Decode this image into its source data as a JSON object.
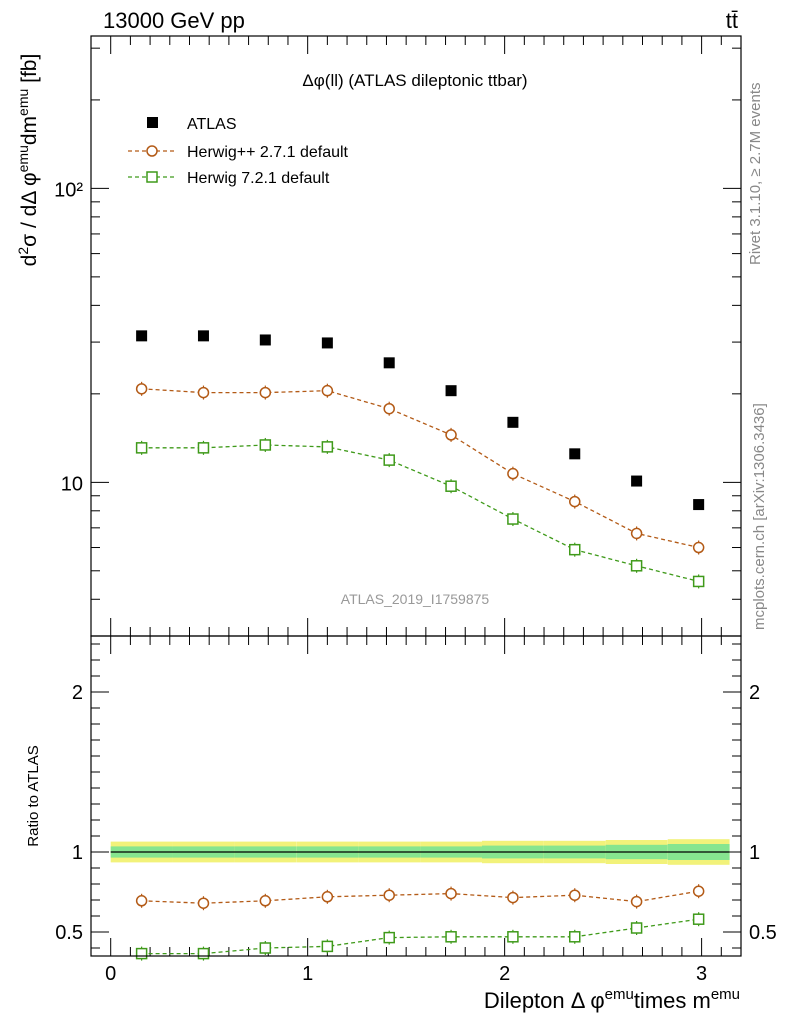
{
  "header": {
    "left": "13000 GeV pp",
    "right": "tt̄"
  },
  "side_labels": {
    "rivet": "Rivet 3.1.10, ≥ 2.7M events",
    "mcplots": "mcplots.cern.ch [arXiv:1306.3436]"
  },
  "chart_data": [
    {
      "type": "scatter",
      "title": "Δφ(ll) (ATLAS dileptonic ttbar)",
      "watermark": "ATLAS_2019_I1759875",
      "ylabel": "d²σ / dΔ φemu dmemu [fb]",
      "yscale": "log",
      "ylim": [
        3,
        330
      ],
      "xlim": [
        -0.1,
        3.2
      ],
      "y_ticks": [
        {
          "value": 10,
          "label": "10"
        },
        {
          "value": 100,
          "label": "10²"
        }
      ],
      "x": [
        0.157,
        0.471,
        0.785,
        1.1,
        1.414,
        1.728,
        2.042,
        2.356,
        2.67,
        2.985
      ],
      "series": [
        {
          "name": "ATLAS",
          "color": "#000000",
          "marker": "filled-square",
          "values": [
            31.5,
            31.5,
            30.5,
            29.8,
            25.5,
            20.5,
            16.0,
            12.5,
            10.1,
            8.4
          ]
        },
        {
          "name": "Herwig++ 2.7.1 default",
          "color": "#b35a16",
          "marker": "open-circle",
          "line": "dashed",
          "values": [
            20.8,
            20.2,
            20.2,
            20.5,
            17.8,
            14.5,
            10.7,
            8.6,
            6.7,
            6.0
          ]
        },
        {
          "name": "Herwig 7.2.1 default",
          "color": "#3f9a1a",
          "marker": "open-square",
          "line": "dashed",
          "values": [
            13.1,
            13.1,
            13.4,
            13.2,
            11.9,
            9.7,
            7.5,
            5.9,
            5.2,
            4.6
          ]
        }
      ]
    },
    {
      "type": "scatter",
      "ylabel": "Ratio to ATLAS",
      "xlabel": "Dilepton Δ φemutimes memu",
      "ylim": [
        0.35,
        2.35
      ],
      "xlim": [
        -0.1,
        3.2
      ],
      "y_ticks": [
        {
          "value": 0.5,
          "label": "0.5"
        },
        {
          "value": 1,
          "label": "1"
        },
        {
          "value": 2,
          "label": "2"
        }
      ],
      "x_ticks": [
        {
          "value": 0,
          "label": "0"
        },
        {
          "value": 1,
          "label": "1"
        },
        {
          "value": 2,
          "label": "2"
        },
        {
          "value": 3,
          "label": "3"
        }
      ],
      "x": [
        0.157,
        0.471,
        0.785,
        1.1,
        1.414,
        1.728,
        2.042,
        2.356,
        2.67,
        2.985
      ],
      "band": {
        "outer_color": "#f2f27a",
        "inner_color": "#86e58f",
        "outer_halfwidth": [
          0.065,
          0.065,
          0.065,
          0.065,
          0.065,
          0.065,
          0.07,
          0.07,
          0.075,
          0.08
        ],
        "inner_halfwidth": [
          0.035,
          0.035,
          0.035,
          0.035,
          0.035,
          0.035,
          0.04,
          0.04,
          0.045,
          0.05
        ]
      },
      "series": [
        {
          "name": "Herwig++ 2.7.1 default",
          "color": "#b35a16",
          "marker": "open-circle",
          "line": "dashed",
          "values": [
            0.695,
            0.68,
            0.695,
            0.72,
            0.73,
            0.74,
            0.715,
            0.73,
            0.69,
            0.755
          ]
        },
        {
          "name": "Herwig 7.2.1 default",
          "color": "#3f9a1a",
          "marker": "open-square",
          "line": "dashed",
          "values": [
            0.365,
            0.365,
            0.4,
            0.41,
            0.465,
            0.47,
            0.47,
            0.47,
            0.525,
            0.58
          ]
        }
      ]
    }
  ]
}
